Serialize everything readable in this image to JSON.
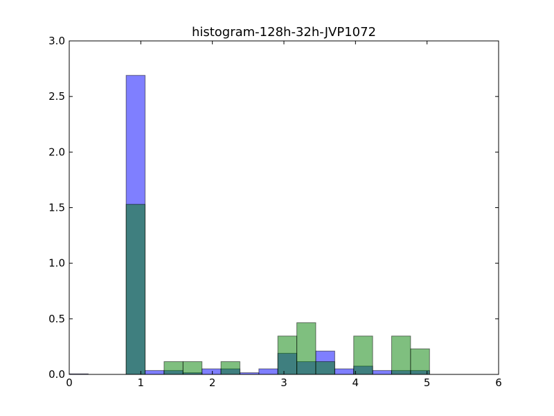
{
  "chart_data": {
    "type": "bar",
    "title": "histogram-128h-32h-JVP1072",
    "xlabel": "",
    "ylabel": "",
    "xlim": [
      0,
      6
    ],
    "ylim": [
      0,
      3.0
    ],
    "xticks": [
      "0",
      "1",
      "2",
      "3",
      "4",
      "5",
      "6"
    ],
    "yticks": [
      "0.0",
      "0.5",
      "1.0",
      "1.5",
      "2.0",
      "2.5",
      "3.0"
    ],
    "grid": false,
    "bin_edges": [
      0.0,
      0.265,
      0.53,
      0.795,
      1.06,
      1.325,
      1.59,
      1.855,
      2.12,
      2.385,
      2.65,
      2.915,
      3.18,
      3.445,
      3.71,
      3.975,
      4.24,
      4.505,
      4.77,
      5.035
    ],
    "series": [
      {
        "color": "#0000ff",
        "alpha": 0.5,
        "values": [
          0.005,
          0.0,
          0.0,
          2.69,
          0.035,
          0.035,
          0.015,
          0.05,
          0.05,
          0.015,
          0.05,
          0.19,
          0.115,
          0.21,
          0.05,
          0.075,
          0.035,
          0.035,
          0.035
        ]
      },
      {
        "color": "#008000",
        "alpha": 0.5,
        "values": [
          0.0,
          0.0,
          0.0,
          1.53,
          0.0,
          0.115,
          0.115,
          0.0,
          0.115,
          0.0,
          0.0,
          0.345,
          0.465,
          0.115,
          0.0,
          0.345,
          0.0,
          0.345,
          0.23
        ]
      }
    ]
  }
}
